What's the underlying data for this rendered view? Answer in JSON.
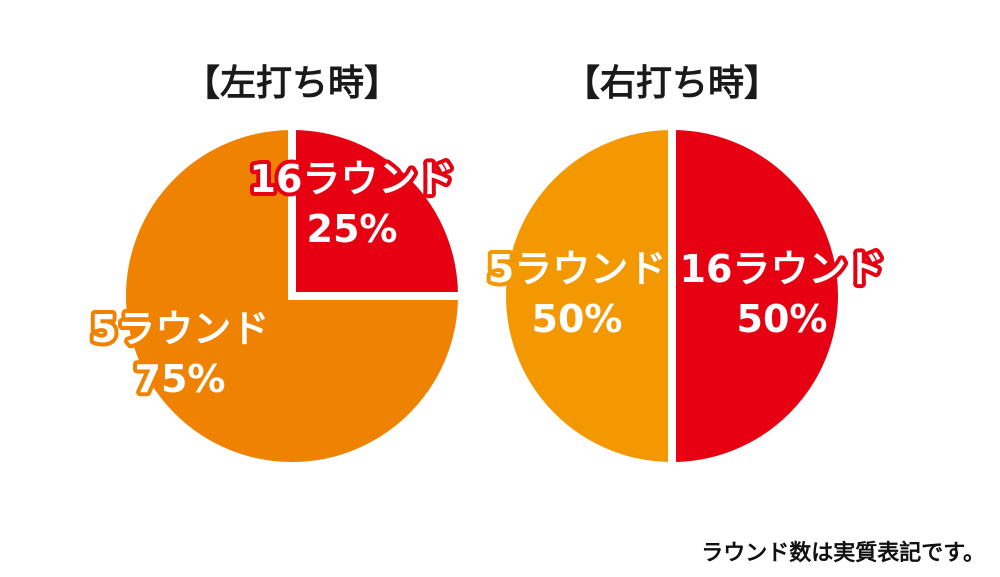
{
  "colors": {
    "red": "#e60012",
    "orange_left": "#ef8200",
    "orange_right": "#f39800",
    "background": "#ffffff",
    "text_dark": "#1a1a1a"
  },
  "chart_data": [
    {
      "type": "pie",
      "title": "【左打ち時】",
      "slices": [
        {
          "label": "16ラウンド",
          "percent_label": "25%",
          "value": 25,
          "color": "#e60012"
        },
        {
          "label": "5ラウンド",
          "percent_label": "75%",
          "value": 75,
          "color": "#ef8200"
        }
      ]
    },
    {
      "type": "pie",
      "title": "【右打ち時】",
      "slices": [
        {
          "label": "16ラウンド",
          "percent_label": "50%",
          "value": 50,
          "color": "#e60012"
        },
        {
          "label": "5ラウンド",
          "percent_label": "50%",
          "value": 50,
          "color": "#f39800"
        }
      ]
    }
  ],
  "footnote": "ラウンド数は実質表記です。"
}
